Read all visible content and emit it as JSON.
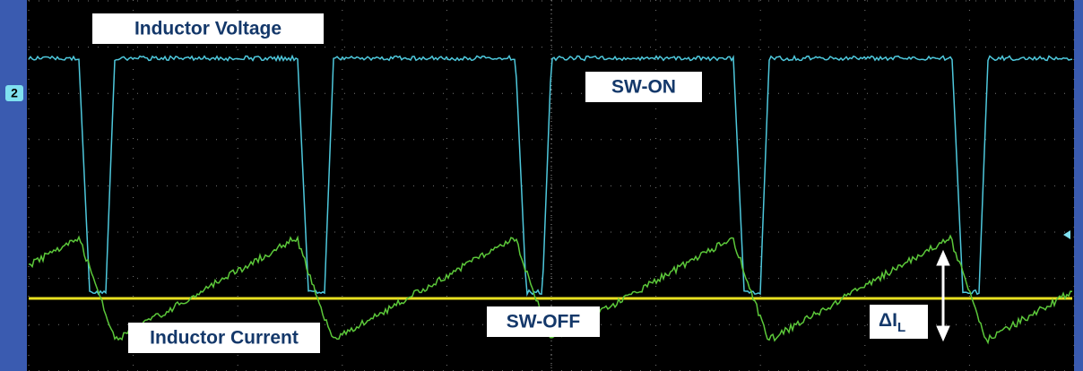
{
  "channel_marker": "2",
  "labels": {
    "inductor_voltage": "Inductor Voltage",
    "sw_on": "SW-ON",
    "sw_off": "SW-OFF",
    "inductor_current": "Inductor Current",
    "delta_il": {
      "main": "ΔI",
      "sub": "L"
    }
  }
}
